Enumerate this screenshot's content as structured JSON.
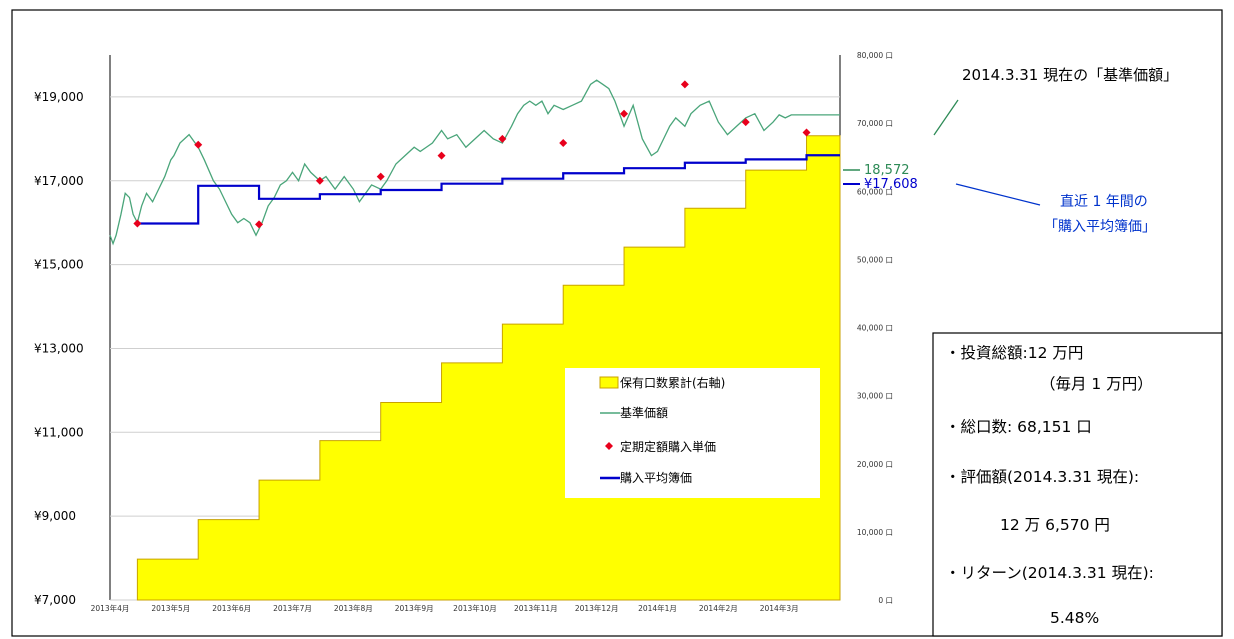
{
  "chart_data": {
    "type": "line",
    "title": "",
    "x_tick_labels": [
      "2013年4月",
      "2013年5月",
      "2013年6月",
      "2013年7月",
      "2013年8月",
      "2013年9月",
      "2013年10月",
      "2013年11月",
      "2013年12月",
      "2014年1月",
      "2014年2月",
      "2014年3月"
    ],
    "y_left": {
      "ticks": [
        "¥7,000",
        "¥9,000",
        "¥11,000",
        "¥13,000",
        "¥15,000",
        "¥17,000",
        "¥19,000"
      ],
      "range": [
        7000,
        20000
      ]
    },
    "y_right": {
      "ticks": [
        "0 口",
        "10,000 口",
        "20,000 口",
        "30,000 口",
        "40,000 口",
        "50,000 口",
        "60,000 口",
        "70,000 口",
        "80,000 口"
      ],
      "range": [
        0,
        80000
      ]
    },
    "legend": [
      "保有口数累計(右軸)",
      "基準価額",
      "定期定額購入単価",
      "購入平均簿価"
    ],
    "legend_placement": "center-right",
    "colors": {
      "units": "#ffff00",
      "units_edge": "#c8a200",
      "nav": "#4aa57a",
      "purchase": "#e8001c",
      "avg": "#0000cc"
    },
    "series": [
      {
        "name": "保有口数累計(右軸)",
        "type": "step-area",
        "x": [
          0.45,
          1.45,
          2.45,
          3.45,
          4.45,
          5.45,
          6.45,
          7.45,
          8.45,
          9.45,
          10.45,
          11.45,
          12.0
        ],
        "values": [
          6000,
          11800,
          17600,
          23400,
          29000,
          34800,
          40500,
          46200,
          51800,
          57500,
          63100,
          68151,
          68151
        ]
      },
      {
        "name": "基準価額",
        "type": "line",
        "x": [
          0.0,
          0.05,
          0.1,
          0.18,
          0.25,
          0.32,
          0.38,
          0.45,
          0.52,
          0.6,
          0.7,
          0.8,
          0.9,
          1.0,
          1.05,
          1.15,
          1.3,
          1.45,
          1.55,
          1.7,
          1.8,
          1.9,
          2.0,
          2.1,
          2.2,
          2.3,
          2.4,
          2.5,
          2.6,
          2.7,
          2.8,
          2.9,
          3.0,
          3.1,
          3.2,
          3.3,
          3.45,
          3.55,
          3.7,
          3.85,
          4.0,
          4.1,
          4.2,
          4.3,
          4.45,
          4.55,
          4.7,
          4.85,
          5.0,
          5.1,
          5.2,
          5.3,
          5.45,
          5.55,
          5.7,
          5.85,
          6.0,
          6.15,
          6.3,
          6.45,
          6.6,
          6.7,
          6.8,
          6.9,
          7.0,
          7.1,
          7.2,
          7.3,
          7.45,
          7.6,
          7.75,
          7.9,
          8.0,
          8.1,
          8.2,
          8.3,
          8.45,
          8.6,
          8.75,
          8.9,
          9.0,
          9.1,
          9.2,
          9.3,
          9.45,
          9.55,
          9.7,
          9.85,
          10.0,
          10.15,
          10.3,
          10.45,
          10.6,
          10.75,
          10.9,
          11.0,
          11.1,
          11.2,
          11.3,
          11.45,
          11.6,
          11.75,
          11.9,
          12.0
        ],
        "values": [
          15700,
          15500,
          15700,
          16200,
          16700,
          16600,
          16200,
          16000,
          16400,
          16700,
          16500,
          16800,
          17100,
          17500,
          17600,
          17900,
          18100,
          17800,
          17500,
          17000,
          16800,
          16500,
          16200,
          16000,
          16100,
          16000,
          15700,
          16000,
          16400,
          16600,
          16900,
          17000,
          17200,
          17000,
          17400,
          17200,
          17000,
          17100,
          16800,
          17100,
          16800,
          16500,
          16700,
          16900,
          16800,
          17000,
          17400,
          17600,
          17800,
          17700,
          17800,
          17900,
          18200,
          18000,
          18100,
          17800,
          18000,
          18200,
          18000,
          17900,
          18300,
          18600,
          18800,
          18900,
          18800,
          18900,
          18600,
          18800,
          18700,
          18800,
          18900,
          19300,
          19400,
          19300,
          19200,
          18900,
          18300,
          18800,
          18000,
          17600,
          17700,
          18000,
          18300,
          18500,
          18300,
          18600,
          18800,
          18900,
          18400,
          18100,
          18300,
          18500,
          18600,
          18200,
          18400,
          18572,
          18500,
          18572,
          18572,
          18572,
          18572,
          18572,
          18572,
          18572
        ]
      },
      {
        "name": "定期定額購入単価",
        "type": "scatter",
        "x": [
          0.45,
          1.45,
          2.45,
          3.45,
          4.45,
          5.45,
          6.45,
          7.45,
          8.45,
          9.45,
          10.45,
          11.45
        ],
        "values": [
          15980,
          17860,
          15960,
          17000,
          17100,
          17600,
          18000,
          17900,
          18600,
          19300,
          18400,
          18150
        ]
      },
      {
        "name": "購入平均簿価",
        "type": "step-line",
        "x": [
          0.45,
          1.45,
          2.45,
          3.45,
          4.45,
          5.45,
          6.45,
          7.45,
          8.45,
          9.45,
          10.45,
          11.45,
          12.0
        ],
        "values": [
          15980,
          16880,
          16570,
          16680,
          16780,
          16930,
          17050,
          17180,
          17300,
          17430,
          17510,
          17608,
          17608
        ]
      }
    ],
    "end_labels": {
      "nav": "18,572",
      "avg": "¥17,608"
    }
  },
  "annotations": {
    "nav_note": "2014.3.31 現在の「基準価額」",
    "avg_note_line1": "直近 1 年間の",
    "avg_note_line2": "「購入平均簿価」"
  },
  "info_box": {
    "line1": "・投資総額:12 万円",
    "line2": "（毎月 1 万円）",
    "line3": "・総口数: 68,151 口",
    "line4": "・評価額(2014.3.31 現在):",
    "line5": "12 万 6,570 円",
    "line6": "・リターン(2014.3.31 現在):",
    "line7": "5.48%"
  }
}
